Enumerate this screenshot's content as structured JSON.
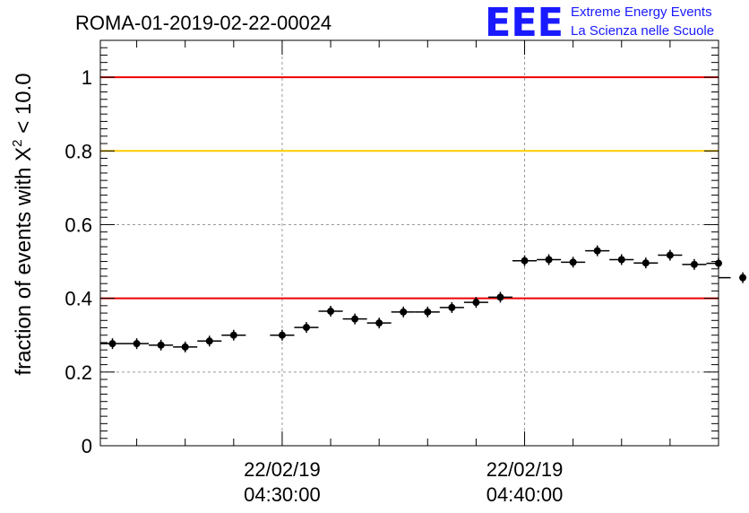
{
  "header": {
    "title": "ROMA-01-2019-02-22-00024",
    "logo_text": "EEE",
    "logo_line1": "Extreme Energy Events",
    "logo_line2": "La Scienza nelle Scuole"
  },
  "chart_data": {
    "type": "scatter",
    "title": "ROMA-01-2019-02-22-00024",
    "xlabel": "",
    "ylabel_prefix": "fraction of events with ",
    "ylabel_symbol": "X",
    "ylabel_superscript": "2",
    "ylabel_suffix": " < 10.0",
    "xlim": [
      "22/02/19 04:22:30",
      "22/02/19 04:48:00"
    ],
    "ylim": [
      0,
      1.1
    ],
    "yticks": [
      0,
      0.2,
      0.4,
      0.6,
      0.8,
      1
    ],
    "ytick_labels": [
      "0",
      "0.2",
      "0.4",
      "0.6",
      "0.8",
      "1"
    ],
    "xticks": [
      {
        "x": "22/02/19 04:30:00",
        "line1": "22/02/19",
        "line2": "04:30:00"
      },
      {
        "x": "22/02/19 04:40:00",
        "line1": "22/02/19",
        "line2": "04:40:00"
      }
    ],
    "grid": true,
    "reference_lines": [
      {
        "y": 1.0,
        "color": "#ee0000"
      },
      {
        "y": 0.8,
        "color": "#ffcc00"
      },
      {
        "y": 0.4,
        "color": "#ee0000"
      }
    ],
    "bin_width_s": 60,
    "marker_color": "#000000",
    "points": [
      {
        "x": "22/02/19 04:23:00",
        "y": 0.277
      },
      {
        "x": "22/02/19 04:24:00",
        "y": 0.277
      },
      {
        "x": "22/02/19 04:25:00",
        "y": 0.273
      },
      {
        "x": "22/02/19 04:26:00",
        "y": 0.268
      },
      {
        "x": "22/02/19 04:27:00",
        "y": 0.284
      },
      {
        "x": "22/02/19 04:28:00",
        "y": 0.3
      },
      {
        "x": "22/02/19 04:30:00",
        "y": 0.3
      },
      {
        "x": "22/02/19 04:31:00",
        "y": 0.321
      },
      {
        "x": "22/02/19 04:32:00",
        "y": 0.365
      },
      {
        "x": "22/02/19 04:33:00",
        "y": 0.344
      },
      {
        "x": "22/02/19 04:34:00",
        "y": 0.333
      },
      {
        "x": "22/02/19 04:35:00",
        "y": 0.363
      },
      {
        "x": "22/02/19 04:36:00",
        "y": 0.363
      },
      {
        "x": "22/02/19 04:37:00",
        "y": 0.375
      },
      {
        "x": "22/02/19 04:38:00",
        "y": 0.389
      },
      {
        "x": "22/02/19 04:39:00",
        "y": 0.403
      },
      {
        "x": "22/02/19 04:40:00",
        "y": 0.502
      },
      {
        "x": "22/02/19 04:41:00",
        "y": 0.505
      },
      {
        "x": "22/02/19 04:42:00",
        "y": 0.498
      },
      {
        "x": "22/02/19 04:43:00",
        "y": 0.529
      },
      {
        "x": "22/02/19 04:44:00",
        "y": 0.505
      },
      {
        "x": "22/02/19 04:45:00",
        "y": 0.496
      },
      {
        "x": "22/02/19 04:46:00",
        "y": 0.517
      },
      {
        "x": "22/02/19 04:47:00",
        "y": 0.492
      },
      {
        "x": "22/02/19 04:48:00",
        "y": 0.495
      },
      {
        "x": "22/02/19 04:49:00",
        "y": 0.456
      }
    ]
  }
}
